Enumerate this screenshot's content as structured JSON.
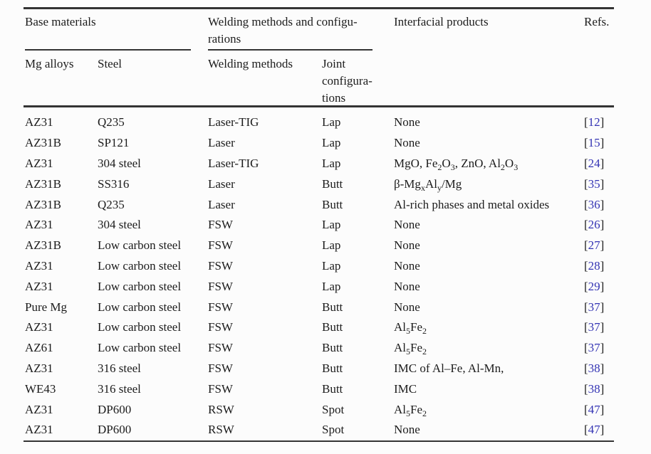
{
  "page": {
    "background_color": "#fcfcfc",
    "text_color": "#1c1c1c",
    "rule_color": "#343434",
    "citation_color": "#3434b4"
  },
  "table": {
    "group_headers": [
      {
        "title": "Base materials"
      },
      {
        "title": "Welding methods and configu-\nrations"
      },
      {
        "title": "Interfacial products"
      },
      {
        "title": "Refs."
      }
    ],
    "sub_headers": [
      {
        "title": "Mg alloys"
      },
      {
        "title": "Steel"
      },
      {
        "title": "Welding methods"
      },
      {
        "title": "Joint\nconfigura-\ntions"
      }
    ],
    "rows": [
      {
        "mg_alloy": "AZ31",
        "steel": "Q235",
        "welding_method": "Laser-TIG",
        "joint_configuration": "Lap",
        "interfacial_products": "None",
        "ref": "12"
      },
      {
        "mg_alloy": "AZ31B",
        "steel": "SP121",
        "welding_method": "Laser",
        "joint_configuration": "Lap",
        "interfacial_products": "None",
        "ref": "15"
      },
      {
        "mg_alloy": "AZ31",
        "steel": "304 steel",
        "welding_method": "Laser-TIG",
        "joint_configuration": "Lap",
        "interfacial_products": "MgO, Fe~2~O~3~, ZnO, Al~2~O~3~",
        "ref": "24"
      },
      {
        "mg_alloy": "AZ31B",
        "steel": "SS316",
        "welding_method": "Laser",
        "joint_configuration": "Butt",
        "interfacial_products": "β-Mg~x~Al~y~/Mg",
        "ref": "35"
      },
      {
        "mg_alloy": "AZ31B",
        "steel": "Q235",
        "welding_method": "Laser",
        "joint_configuration": "Butt",
        "interfacial_products": "Al-rich phases and metal oxides",
        "ref": "36"
      },
      {
        "mg_alloy": "AZ31",
        "steel": "304 steel",
        "welding_method": "FSW",
        "joint_configuration": "Lap",
        "interfacial_products": "None",
        "ref": "26"
      },
      {
        "mg_alloy": "AZ31B",
        "steel": "Low carbon steel",
        "welding_method": "FSW",
        "joint_configuration": "Lap",
        "interfacial_products": "None",
        "ref": "27"
      },
      {
        "mg_alloy": "AZ31",
        "steel": "Low carbon steel",
        "welding_method": "FSW",
        "joint_configuration": "Lap",
        "interfacial_products": "None",
        "ref": "28"
      },
      {
        "mg_alloy": "AZ31",
        "steel": "Low carbon steel",
        "welding_method": "FSW",
        "joint_configuration": "Lap",
        "interfacial_products": "None",
        "ref": "29"
      },
      {
        "mg_alloy": "Pure Mg",
        "steel": "Low carbon steel",
        "welding_method": "FSW",
        "joint_configuration": "Butt",
        "interfacial_products": "None",
        "ref": "37"
      },
      {
        "mg_alloy": "AZ31",
        "steel": "Low carbon steel",
        "welding_method": "FSW",
        "joint_configuration": "Butt",
        "interfacial_products": "Al~5~Fe~2~",
        "ref": "37"
      },
      {
        "mg_alloy": "AZ61",
        "steel": "Low carbon steel",
        "welding_method": "FSW",
        "joint_configuration": "Butt",
        "interfacial_products": "Al~5~Fe~2~",
        "ref": "37"
      },
      {
        "mg_alloy": "AZ31",
        "steel": "316 steel",
        "welding_method": "FSW",
        "joint_configuration": "Butt",
        "interfacial_products": "IMC of Al–Fe, Al-Mn,",
        "ref": "38"
      },
      {
        "mg_alloy": "WE43",
        "steel": "316 steel",
        "welding_method": "FSW",
        "joint_configuration": "Butt",
        "interfacial_products": "IMC",
        "ref": "38"
      },
      {
        "mg_alloy": "AZ31",
        "steel": "DP600",
        "welding_method": "RSW",
        "joint_configuration": "Spot",
        "interfacial_products": "Al~5~Fe~2~",
        "ref": "47"
      },
      {
        "mg_alloy": "AZ31",
        "steel": "DP600",
        "welding_method": "RSW",
        "joint_configuration": "Spot",
        "interfacial_products": "None",
        "ref": "47"
      }
    ]
  }
}
